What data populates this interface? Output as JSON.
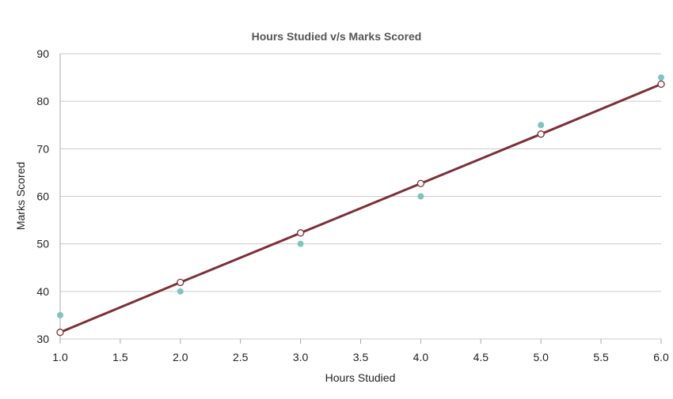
{
  "chart_data": {
    "type": "scatter",
    "title": "Hours Studied v/s Marks Scored",
    "xlabel": "Hours Studied",
    "ylabel": "Marks Scored",
    "xlim": [
      1.0,
      6.0
    ],
    "ylim": [
      30,
      90
    ],
    "x_ticks": [
      "1.0",
      "1.5",
      "2.0",
      "2.5",
      "3.0",
      "3.5",
      "4.0",
      "4.5",
      "5.0",
      "5.5",
      "6.0"
    ],
    "y_ticks": [
      "30",
      "40",
      "50",
      "60",
      "70",
      "80",
      "90"
    ],
    "grid": true,
    "series": [
      {
        "kind": "scatter",
        "color": "#7ec4c0",
        "points": [
          {
            "x": 1,
            "y": 35
          },
          {
            "x": 2,
            "y": 40
          },
          {
            "x": 3,
            "y": 50
          },
          {
            "x": 4,
            "y": 60
          },
          {
            "x": 5,
            "y": 75
          },
          {
            "x": 6,
            "y": 85
          }
        ]
      },
      {
        "kind": "line",
        "color": "#7b3039",
        "points": [
          {
            "x": 1,
            "y": 31.4
          },
          {
            "x": 2,
            "y": 41.9
          },
          {
            "x": 3,
            "y": 52.3
          },
          {
            "x": 4,
            "y": 62.7
          },
          {
            "x": 5,
            "y": 73.1
          },
          {
            "x": 6,
            "y": 83.6
          }
        ]
      }
    ]
  }
}
